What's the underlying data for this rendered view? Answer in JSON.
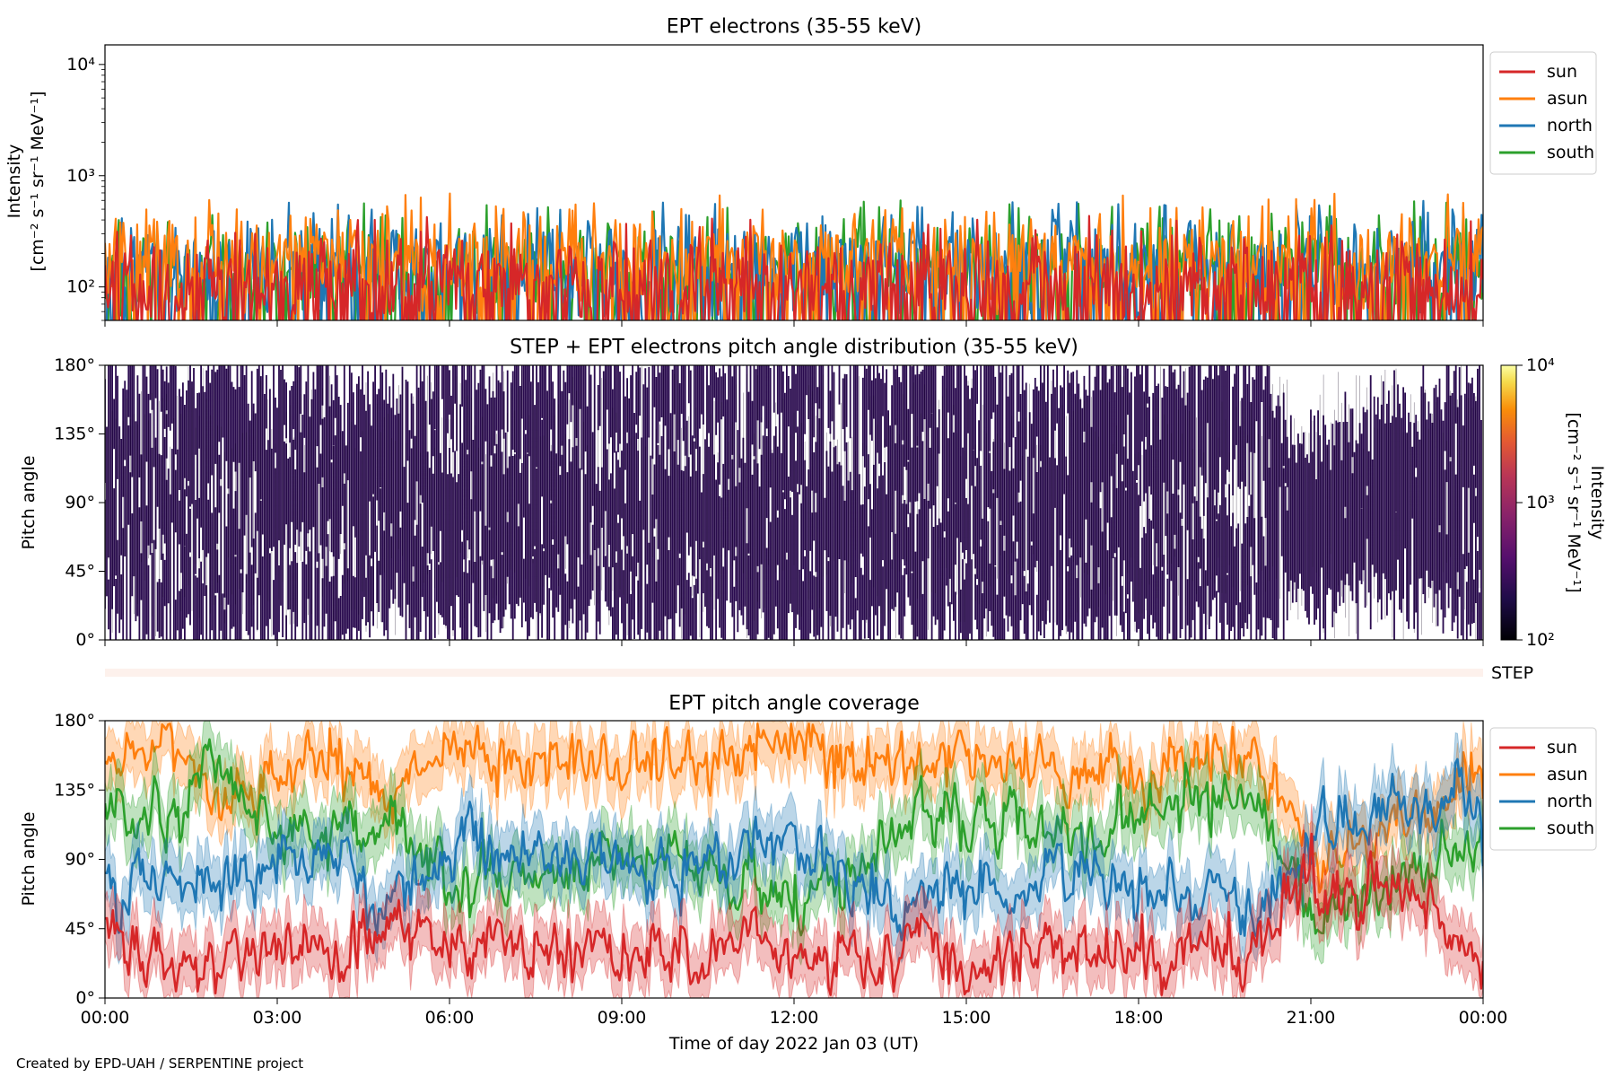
{
  "footer": {
    "credit": "Created by EPD-UAH / SERPENTINE project"
  },
  "legend_entries": [
    "sun",
    "asun",
    "north",
    "south"
  ],
  "colors": {
    "sun": "#d62728",
    "asun": "#ff7f0e",
    "north": "#1f77b4",
    "south": "#2ca02c",
    "step_band": "#fdf1ec"
  },
  "chart_data": [
    {
      "type": "line",
      "title": "EPT electrons (35-55 keV)",
      "ylabel_lines": [
        "Intensity",
        "[cm⁻² s⁻¹ sr⁻¹ MeV⁻¹]"
      ],
      "yscale": "log",
      "ylim": [
        50,
        15000
      ],
      "yticks": [
        {
          "value": 100,
          "label": "10²"
        },
        {
          "value": 1000,
          "label": "10³"
        },
        {
          "value": 10000,
          "label": "10⁴"
        }
      ],
      "xlim_hours": [
        0,
        24
      ],
      "legend_position": "outside-right-top",
      "series": [
        {
          "name": "south",
          "color": "#2ca02c",
          "typical_value": 160,
          "peak_value": 600
        },
        {
          "name": "north",
          "color": "#1f77b4",
          "typical_value": 170,
          "peak_value": 600
        },
        {
          "name": "asun",
          "color": "#ff7f0e",
          "typical_value": 180,
          "peak_value": 720
        },
        {
          "name": "sun",
          "color": "#d62728",
          "typical_value": 110,
          "peak_value": 450
        }
      ]
    },
    {
      "type": "heatmap",
      "title": "STEP + EPT electrons pitch angle distribution (35-55 keV)",
      "ylabel": "Pitch angle",
      "ylim": [
        0,
        180
      ],
      "yticks": [
        "0°",
        "45°",
        "90°",
        "135°",
        "180°"
      ],
      "xlim_hours": [
        0,
        24
      ],
      "colorbar": {
        "label_lines": [
          "Intensity",
          "[cm⁻² s⁻¹ sr⁻¹ MeV⁻¹]"
        ],
        "scale": "log",
        "range": [
          100,
          10000
        ],
        "ticks": [
          "10²",
          "10³",
          "10⁴"
        ],
        "colormap": "inferno"
      },
      "typical_intensity": 150
    },
    {
      "type": "band",
      "label": "STEP"
    },
    {
      "type": "line",
      "title": "EPT pitch angle coverage",
      "ylabel": "Pitch angle",
      "ylim": [
        0,
        180
      ],
      "yticks": [
        "0°",
        "45°",
        "90°",
        "135°",
        "180°"
      ],
      "xlim_hours": [
        0,
        24
      ],
      "xticks": [
        "00:00",
        "03:00",
        "06:00",
        "09:00",
        "12:00",
        "15:00",
        "18:00",
        "21:00",
        "00:00"
      ],
      "xlabel": "Time of day 2022 Jan 03 (UT)",
      "legend_position": "outside-right-top",
      "series": [
        {
          "name": "sun",
          "color": "#d62728",
          "hours": [
            0,
            1,
            2,
            3,
            4,
            5,
            6,
            7,
            8,
            9,
            10,
            11,
            12,
            13,
            14,
            15,
            16,
            17,
            18,
            19,
            20,
            21,
            22,
            23,
            24
          ],
          "values": [
            40,
            25,
            28,
            30,
            22,
            45,
            35,
            38,
            32,
            30,
            25,
            40,
            28,
            30,
            35,
            25,
            30,
            30,
            28,
            30,
            28,
            75,
            70,
            60,
            20
          ]
        },
        {
          "name": "asun",
          "color": "#ff7f0e",
          "hours": [
            0,
            1,
            2,
            3,
            4,
            5,
            6,
            7,
            8,
            9,
            10,
            11,
            12,
            13,
            14,
            15,
            16,
            17,
            18,
            19,
            20,
            21,
            22,
            23,
            24
          ],
          "values": [
            150,
            165,
            130,
            145,
            158,
            125,
            160,
            150,
            155,
            148,
            160,
            160,
            162,
            155,
            150,
            160,
            150,
            145,
            155,
            150,
            160,
            90,
            110,
            120,
            140
          ]
        },
        {
          "name": "north",
          "color": "#1f77b4",
          "hours": [
            0,
            1,
            2,
            3,
            4,
            5,
            6,
            7,
            8,
            9,
            10,
            11,
            12,
            13,
            14,
            15,
            16,
            17,
            18,
            19,
            20,
            21,
            22,
            23,
            24
          ],
          "values": [
            70,
            80,
            75,
            85,
            90,
            60,
            95,
            100,
            90,
            88,
            85,
            100,
            110,
            70,
            60,
            75,
            70,
            80,
            75,
            65,
            55,
            100,
            120,
            130,
            120
          ]
        },
        {
          "name": "south",
          "color": "#2ca02c",
          "hours": [
            0,
            1,
            2,
            3,
            4,
            5,
            6,
            7,
            8,
            9,
            10,
            11,
            12,
            13,
            14,
            15,
            16,
            17,
            18,
            19,
            20,
            21,
            22,
            23,
            24
          ],
          "values": [
            130,
            110,
            150,
            100,
            110,
            115,
            80,
            75,
            85,
            92,
            90,
            75,
            65,
            75,
            115,
            120,
            115,
            110,
            120,
            135,
            125,
            55,
            65,
            80,
            90
          ]
        }
      ]
    }
  ]
}
